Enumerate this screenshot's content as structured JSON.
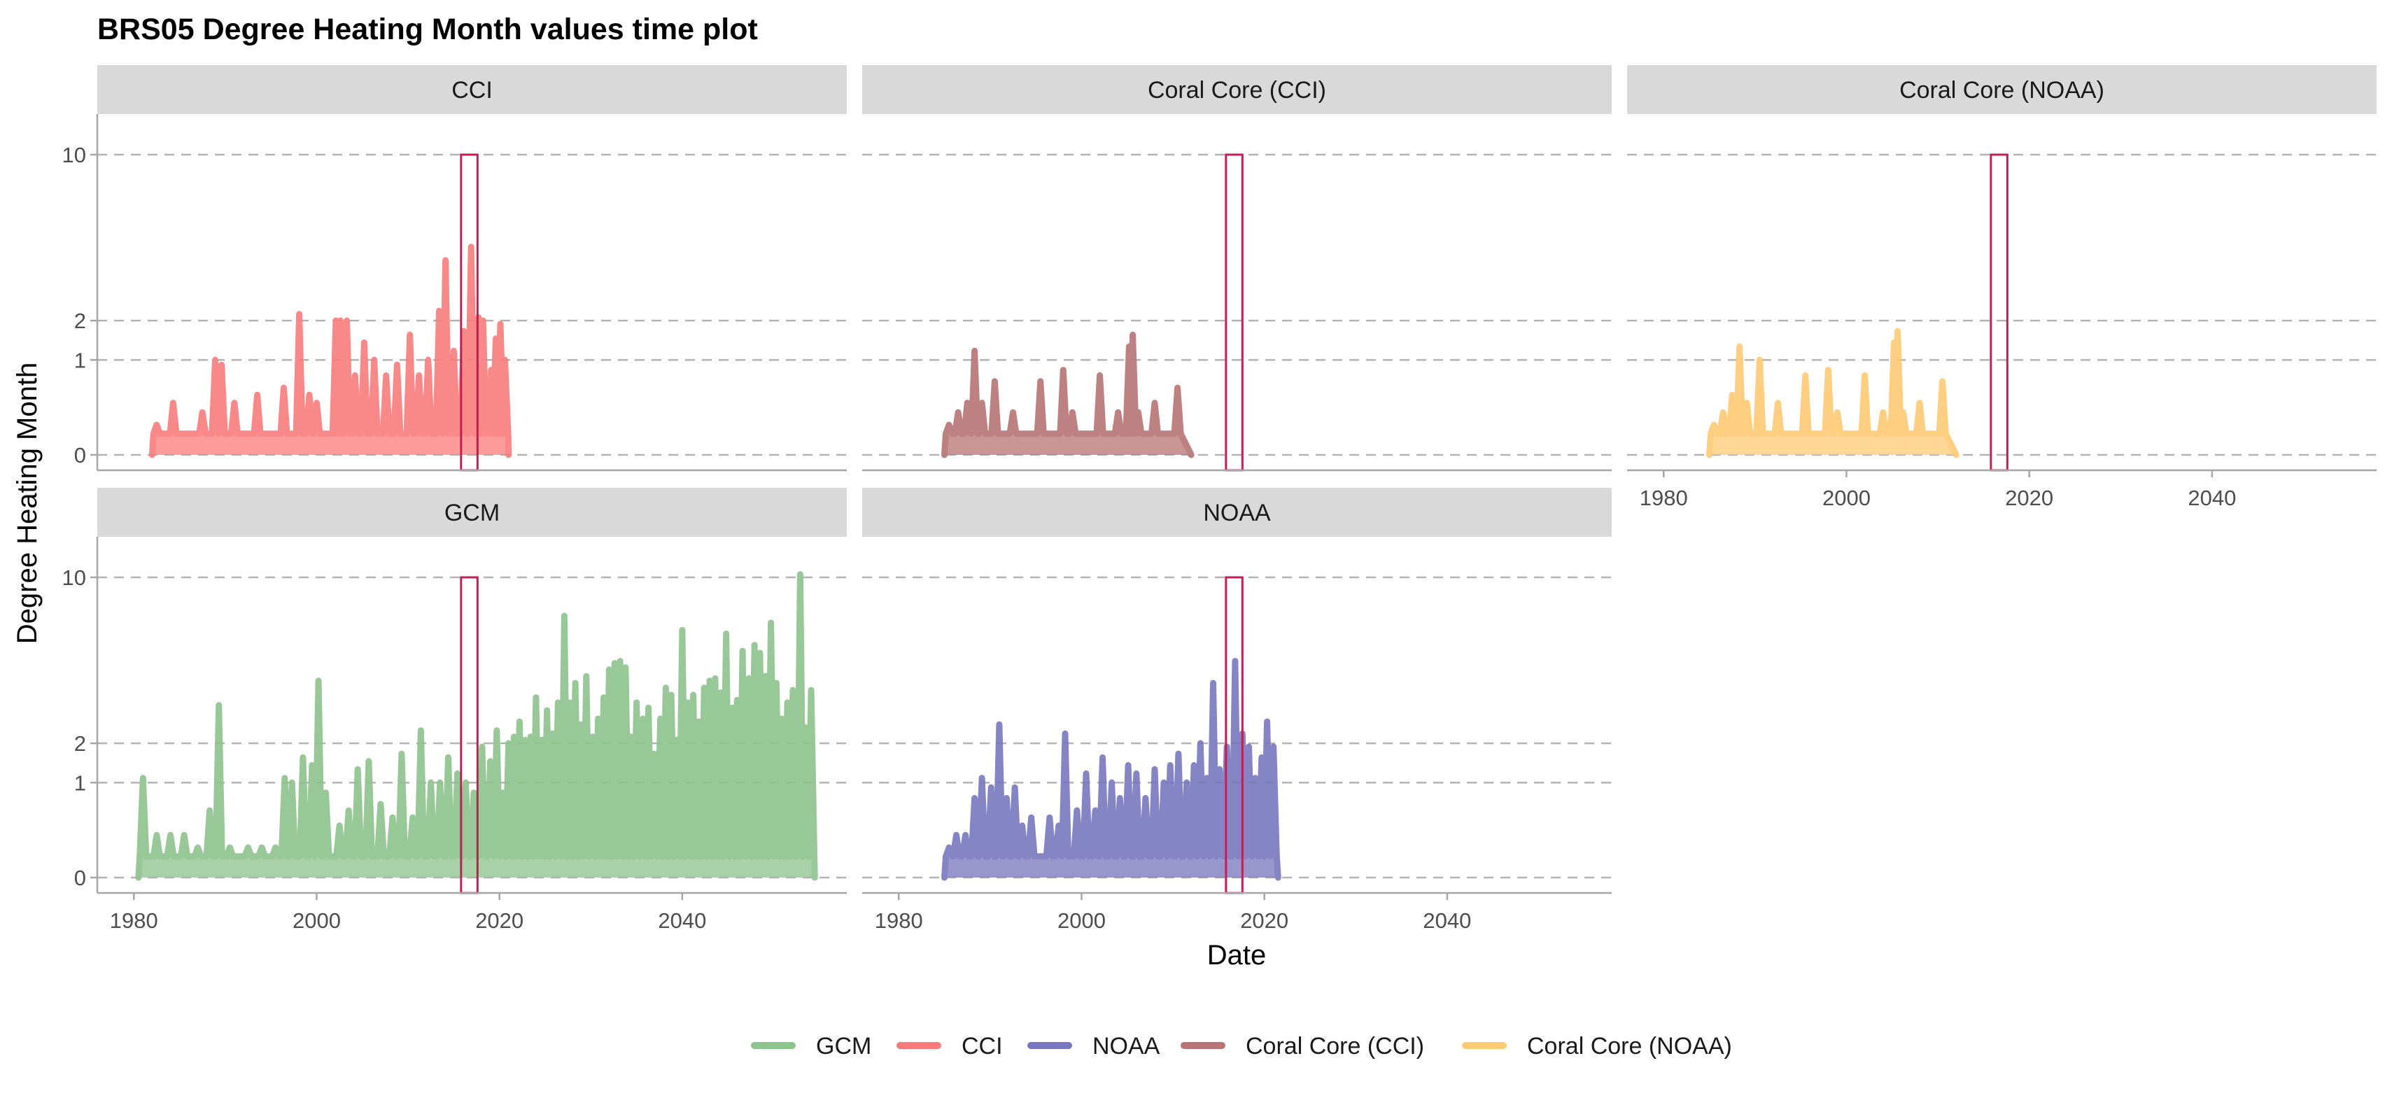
{
  "colors": {
    "GCM": "#8DC38C",
    "CCI": "#F97C7C",
    "NOAA": "#7878C0",
    "Coral Core (CCI)": "#B87474",
    "Coral Core (NOAA)": "#FECA74",
    "highlight_box": "#C21E56",
    "strip_bg": "#D9D9D9",
    "grid": "#B3B3B3",
    "axis": "#A6A6A6"
  },
  "chart_data": {
    "type": "line",
    "title": "BRS05 Degree Heating Month values time plot",
    "xlabel": "Date",
    "ylabel": "Degree Heating Month",
    "xlim": [
      1976,
      2058
    ],
    "ylim": [
      -0.5,
      10.5
    ],
    "y_scale": "sqrt",
    "x_ticks": [
      "1980",
      "2000",
      "2020",
      "2040"
    ],
    "y_ticks": [
      0,
      1,
      2,
      10
    ],
    "y_tick_labels": [
      "0",
      "1",
      "2",
      "10"
    ],
    "reference_lines": [
      0,
      1,
      2,
      10
    ],
    "highlight_window": {
      "x": [
        2015.8,
        2017.6
      ],
      "y": [
        -0.5,
        10
      ]
    },
    "legend_position": "bottom",
    "panels": [
      {
        "strip": "CCI",
        "series": "CCI",
        "x_range": [
          1982,
          2021
        ],
        "peaks": [
          [
            1982.5,
            0.1
          ],
          [
            1984.3,
            0.3
          ],
          [
            1987.5,
            0.2
          ],
          [
            1988.9,
            1.0
          ],
          [
            1989.6,
            0.9
          ],
          [
            1991,
            0.3
          ],
          [
            1993.5,
            0.4
          ],
          [
            1996.4,
            0.5
          ],
          [
            1998.1,
            2.2
          ],
          [
            1999.2,
            0.4
          ],
          [
            2000,
            0.3
          ],
          [
            2002.1,
            2.0
          ],
          [
            2002.6,
            2.0
          ],
          [
            2003.3,
            2.0
          ],
          [
            2004.2,
            0.7
          ],
          [
            2005.2,
            1.4
          ],
          [
            2006.3,
            1.0
          ],
          [
            2007.6,
            0.7
          ],
          [
            2008.8,
            0.9
          ],
          [
            2010.2,
            1.6
          ],
          [
            2011.2,
            0.7
          ],
          [
            2012.2,
            1.0
          ],
          [
            2013.4,
            2.3
          ],
          [
            2014.1,
            4.2
          ],
          [
            2015,
            1.2
          ],
          [
            2016.1,
            1.7
          ],
          [
            2016.9,
            4.8
          ],
          [
            2017.7,
            2.1
          ],
          [
            2018.2,
            2.0
          ],
          [
            2019.1,
            0.8
          ],
          [
            2019.6,
            1.5
          ],
          [
            2020.1,
            1.9
          ],
          [
            2020.6,
            1.0
          ]
        ]
      },
      {
        "strip": "Coral Core (CCI)",
        "series": "Coral Core (CCI)",
        "x_range": [
          1985,
          2012
        ],
        "peaks": [
          [
            1985.5,
            0.1
          ],
          [
            1986.5,
            0.2
          ],
          [
            1987.5,
            0.3
          ],
          [
            1988.3,
            1.2
          ],
          [
            1989.1,
            0.3
          ],
          [
            1990.5,
            0.6
          ],
          [
            1992.5,
            0.2
          ],
          [
            1995.5,
            0.6
          ],
          [
            1998,
            0.8
          ],
          [
            1999,
            0.2
          ],
          [
            2002,
            0.7
          ],
          [
            2004,
            0.2
          ],
          [
            2005.2,
            1.3
          ],
          [
            2005.6,
            1.6
          ],
          [
            2006.2,
            0.2
          ],
          [
            2008,
            0.3
          ],
          [
            2010.5,
            0.5
          ]
        ]
      },
      {
        "strip": "Coral Core (NOAA)",
        "series": "Coral Core (NOAA)",
        "x_range": [
          1985,
          2012
        ],
        "peaks": [
          [
            1985.5,
            0.1
          ],
          [
            1986.5,
            0.2
          ],
          [
            1987.5,
            0.4
          ],
          [
            1988.3,
            1.3
          ],
          [
            1989.1,
            0.3
          ],
          [
            1990.5,
            1.0
          ],
          [
            1992.5,
            0.3
          ],
          [
            1995.5,
            0.7
          ],
          [
            1998,
            0.8
          ],
          [
            1999,
            0.2
          ],
          [
            2002,
            0.7
          ],
          [
            2004,
            0.2
          ],
          [
            2005.2,
            1.4
          ],
          [
            2005.6,
            1.7
          ],
          [
            2006.2,
            0.2
          ],
          [
            2008,
            0.3
          ],
          [
            2010.5,
            0.6
          ]
        ]
      },
      {
        "strip": "GCM",
        "series": "GCM",
        "x_range": [
          1980.5,
          2054.5
        ],
        "peaks": [
          [
            1981,
            1.1
          ],
          [
            1982.5,
            0.2
          ],
          [
            1984,
            0.2
          ],
          [
            1985.5,
            0.2
          ],
          [
            1987,
            0.1
          ],
          [
            1988.3,
            0.5
          ],
          [
            1989.3,
            3.3
          ],
          [
            1990.5,
            0.1
          ],
          [
            1992.5,
            0.1
          ],
          [
            1994,
            0.1
          ],
          [
            1995.5,
            0.1
          ],
          [
            1996.5,
            1.1
          ],
          [
            1997.3,
            1.0
          ],
          [
            1998.5,
            1.6
          ],
          [
            1999.5,
            1.4
          ],
          [
            2000.2,
            4.3
          ],
          [
            2001,
            0.8
          ],
          [
            2002.5,
            0.3
          ],
          [
            2003.5,
            0.5
          ],
          [
            2004.5,
            1.3
          ],
          [
            2005.7,
            1.5
          ],
          [
            2007,
            0.6
          ],
          [
            2008.3,
            0.4
          ],
          [
            2009.3,
            1.7
          ],
          [
            2010.5,
            0.4
          ],
          [
            2011.4,
            2.4
          ],
          [
            2012.5,
            1.0
          ],
          [
            2013.5,
            1.0
          ],
          [
            2014.4,
            1.6
          ],
          [
            2015.4,
            1.2
          ],
          [
            2016.3,
            1.0
          ],
          [
            2017.2,
            0.8
          ],
          [
            2018.1,
            1.9
          ],
          [
            2019,
            1.5
          ],
          [
            2019.7,
            2.4
          ],
          [
            2020.4,
            0.8
          ],
          [
            2021,
            2.0
          ],
          [
            2021.6,
            2.2
          ],
          [
            2022.2,
            2.7
          ],
          [
            2022.8,
            2.1
          ],
          [
            2023.4,
            2.2
          ],
          [
            2024,
            3.6
          ],
          [
            2024.6,
            2.1
          ],
          [
            2025.2,
            3.1
          ],
          [
            2025.8,
            2.3
          ],
          [
            2026.4,
            3.4
          ],
          [
            2027.1,
            7.6
          ],
          [
            2027.7,
            3.4
          ],
          [
            2028.3,
            4.2
          ],
          [
            2028.9,
            2.6
          ],
          [
            2029.5,
            4.5
          ],
          [
            2030.2,
            2.2
          ],
          [
            2030.8,
            2.8
          ],
          [
            2031.4,
            3.6
          ],
          [
            2032,
            4.8
          ],
          [
            2032.6,
            5.1
          ],
          [
            2033.2,
            5.2
          ],
          [
            2033.8,
            4.9
          ],
          [
            2034.4,
            2.2
          ],
          [
            2035,
            3.4
          ],
          [
            2035.7,
            2.8
          ],
          [
            2036.3,
            3.2
          ],
          [
            2036.9,
            1.7
          ],
          [
            2037.6,
            2.8
          ],
          [
            2038.2,
            4.0
          ],
          [
            2038.8,
            3.7
          ],
          [
            2039.4,
            2.1
          ],
          [
            2040,
            6.8
          ],
          [
            2040.6,
            3.4
          ],
          [
            2041.2,
            3.7
          ],
          [
            2041.8,
            2.7
          ],
          [
            2042.4,
            4.0
          ],
          [
            2043,
            4.3
          ],
          [
            2043.6,
            4.4
          ],
          [
            2044.2,
            3.8
          ],
          [
            2044.8,
            6.6
          ],
          [
            2045.5,
            3.2
          ],
          [
            2046,
            3.5
          ],
          [
            2046.6,
            5.7
          ],
          [
            2047.3,
            4.4
          ],
          [
            2047.9,
            6.0
          ],
          [
            2048.5,
            5.6
          ],
          [
            2049.1,
            4.5
          ],
          [
            2049.7,
            7.2
          ],
          [
            2050.3,
            4.2
          ],
          [
            2050.9,
            2.8
          ],
          [
            2051.5,
            3.4
          ],
          [
            2052.1,
            3.9
          ],
          [
            2052.9,
            10.2
          ],
          [
            2053.5,
            2.5
          ],
          [
            2054.1,
            3.9
          ]
        ]
      },
      {
        "strip": "NOAA",
        "series": "NOAA",
        "x_range": [
          1985,
          2021.5
        ],
        "peaks": [
          [
            1985.5,
            0.1
          ],
          [
            1986.3,
            0.2
          ],
          [
            1987.3,
            0.2
          ],
          [
            1988.3,
            0.7
          ],
          [
            1989.1,
            1.1
          ],
          [
            1990.1,
            0.9
          ],
          [
            1991,
            2.6
          ],
          [
            1991.8,
            0.7
          ],
          [
            1992.7,
            0.9
          ],
          [
            1993.5,
            0.3
          ],
          [
            1994.5,
            0.4
          ],
          [
            1996.5,
            0.4
          ],
          [
            1997.5,
            0.3
          ],
          [
            1998.2,
            2.3
          ],
          [
            1999.5,
            0.5
          ],
          [
            2000.5,
            1.2
          ],
          [
            2001.5,
            0.5
          ],
          [
            2002.3,
            1.6
          ],
          [
            2003.3,
            1.0
          ],
          [
            2004.2,
            0.7
          ],
          [
            2005.1,
            1.4
          ],
          [
            2006,
            1.2
          ],
          [
            2007,
            0.7
          ],
          [
            2008,
            1.3
          ],
          [
            2009,
            1.0
          ],
          [
            2009.7,
            1.4
          ],
          [
            2010.6,
            1.7
          ],
          [
            2011.5,
            1.0
          ],
          [
            2012.3,
            1.4
          ],
          [
            2013,
            2.0
          ],
          [
            2013.7,
            1.1
          ],
          [
            2014.4,
            4.2
          ],
          [
            2015.1,
            1.3
          ],
          [
            2015.9,
            1.9
          ],
          [
            2016.8,
            5.2
          ],
          [
            2017.6,
            2.3
          ],
          [
            2018.3,
            1.9
          ],
          [
            2019,
            1.1
          ],
          [
            2019.7,
            1.6
          ],
          [
            2020.3,
            2.7
          ],
          [
            2021,
            1.9
          ]
        ]
      }
    ],
    "legend": [
      "GCM",
      "CCI",
      "NOAA",
      "Coral Core (CCI)",
      "Coral Core (NOAA)"
    ]
  }
}
